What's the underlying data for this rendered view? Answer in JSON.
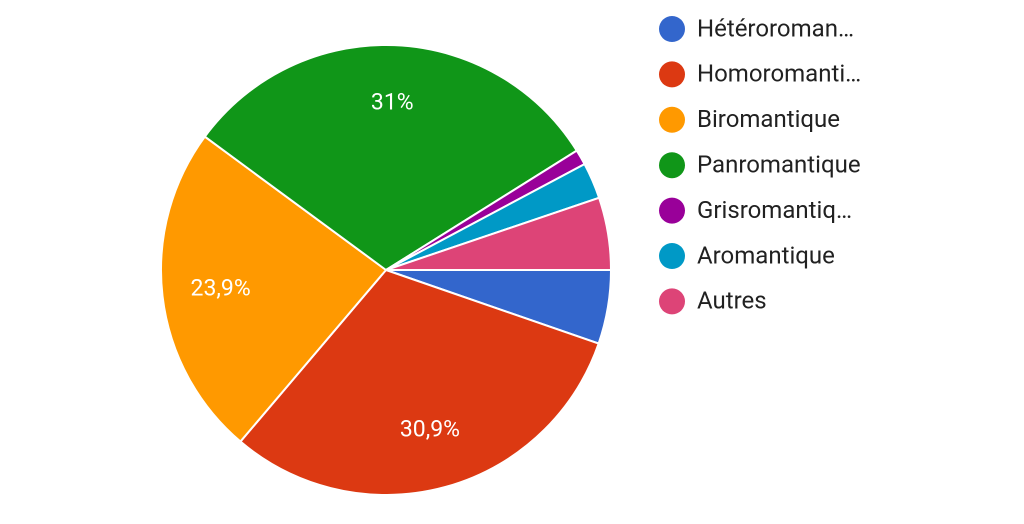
{
  "chart_data": {
    "type": "pie",
    "categories": [
      "Hétéroroman…",
      "Homoromanti…",
      "Biromantique",
      "Panromantique",
      "Grisromantiq…",
      "Aromantique",
      "Autres"
    ],
    "values": [
      5.3,
      30.9,
      23.9,
      31,
      1.1,
      2.6,
      5.2
    ],
    "value_labels": [
      null,
      "30,9%",
      "23,9%",
      "31%",
      null,
      null,
      null
    ],
    "colors": [
      "#3366cc",
      "#dc3912",
      "#ff9900",
      "#109618",
      "#990099",
      "#0099c6",
      "#dd4477"
    ]
  }
}
